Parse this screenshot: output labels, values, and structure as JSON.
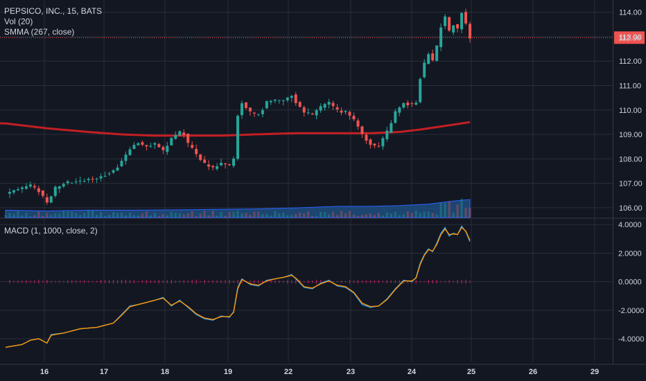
{
  "legend": {
    "title": "PEPSICO, INC., 15, BATS",
    "volume": "Vol (20)",
    "smma": "SMMA (267, close)",
    "macd": "MACD (1, 1000, close, 2)"
  },
  "last_price_label": "112.96",
  "colors": {
    "background": "#131722",
    "grid": "#2a2e39",
    "up": "#26a69a",
    "down": "#ef5350",
    "smma": "#c41f23",
    "volume_ma": "#2962ff",
    "macd_line": "#2196f3",
    "signal_line": "#ff9800",
    "histogram": "#e91e63",
    "price_tag": "#ef5350",
    "axis_text": "#d1d4dc"
  },
  "chart_data": [
    {
      "type": "candlestick",
      "title": "PEPSICO, INC., 15, BATS",
      "x_tick_labels": [
        "16",
        "17",
        "18",
        "19",
        "22",
        "23",
        "24",
        "25",
        "26",
        "29"
      ],
      "y_tick_labels": [
        "114.00",
        "113.00",
        "112.00",
        "111.00",
        "110.00",
        "109.00",
        "108.00",
        "107.00",
        "106.00"
      ],
      "ylim": [
        105.6,
        114.5
      ],
      "grid": true,
      "last_price": 112.96,
      "approx_path": [
        [
          0,
          106.6
        ],
        [
          6,
          106.9
        ],
        [
          8,
          106.7
        ],
        [
          10,
          106.2
        ],
        [
          12,
          106.8
        ],
        [
          14,
          107.0
        ],
        [
          18,
          107.1
        ],
        [
          22,
          107.2
        ],
        [
          26,
          107.5
        ],
        [
          28,
          107.9
        ],
        [
          30,
          108.4
        ],
        [
          32,
          108.7
        ],
        [
          34,
          108.5
        ],
        [
          36,
          108.6
        ],
        [
          38,
          108.3
        ],
        [
          40,
          108.8
        ],
        [
          42,
          109.1
        ],
        [
          43,
          109.0
        ],
        [
          44,
          108.6
        ],
        [
          46,
          108.2
        ],
        [
          48,
          107.8
        ],
        [
          50,
          107.6
        ],
        [
          52,
          107.8
        ],
        [
          54,
          107.7
        ],
        [
          55,
          108.0
        ],
        [
          56,
          109.8
        ],
        [
          57,
          110.3
        ],
        [
          59,
          109.9
        ],
        [
          61,
          109.8
        ],
        [
          63,
          110.3
        ],
        [
          65,
          110.4
        ],
        [
          67,
          110.4
        ],
        [
          69,
          110.6
        ],
        [
          70,
          110.3
        ],
        [
          72,
          109.9
        ],
        [
          74,
          109.8
        ],
        [
          76,
          110.1
        ],
        [
          78,
          110.3
        ],
        [
          80,
          110.0
        ],
        [
          82,
          109.9
        ],
        [
          84,
          109.6
        ],
        [
          86,
          109.0
        ],
        [
          88,
          108.6
        ],
        [
          90,
          108.5
        ],
        [
          92,
          109.1
        ],
        [
          94,
          109.9
        ],
        [
          96,
          110.3
        ],
        [
          98,
          110.2
        ],
        [
          99,
          110.3
        ],
        [
          100,
          111.3
        ],
        [
          101,
          111.9
        ],
        [
          102,
          112.3
        ],
        [
          103,
          112.0
        ],
        [
          104,
          112.6
        ],
        [
          105,
          113.4
        ],
        [
          106,
          113.8
        ],
        [
          107,
          113.2
        ],
        [
          108,
          113.5
        ],
        [
          109,
          113.3
        ],
        [
          110,
          114.0
        ],
        [
          111,
          113.5
        ],
        [
          112,
          112.96
        ]
      ],
      "smma": [
        [
          0,
          109.45
        ],
        [
          10,
          109.25
        ],
        [
          20,
          109.1
        ],
        [
          28,
          109.0
        ],
        [
          36,
          108.95
        ],
        [
          44,
          108.95
        ],
        [
          52,
          108.95
        ],
        [
          60,
          109.0
        ],
        [
          70,
          109.05
        ],
        [
          80,
          109.05
        ],
        [
          88,
          109.05
        ],
        [
          95,
          109.1
        ],
        [
          100,
          109.2
        ],
        [
          106,
          109.35
        ],
        [
          112,
          109.5
        ]
      ],
      "volume_ma": [
        [
          0,
          0.3
        ],
        [
          10,
          0.25
        ],
        [
          20,
          0.3
        ],
        [
          30,
          0.3
        ],
        [
          40,
          0.32
        ],
        [
          50,
          0.35
        ],
        [
          60,
          0.38
        ],
        [
          70,
          0.45
        ],
        [
          80,
          0.55
        ],
        [
          88,
          0.55
        ],
        [
          95,
          0.6
        ],
        [
          102,
          0.7
        ],
        [
          108,
          0.9
        ],
        [
          112,
          1.0
        ]
      ]
    },
    {
      "type": "line",
      "title": "MACD (1, 1000, close, 2)",
      "y_tick_labels": [
        "4.0000",
        "2.0000",
        "0.0000",
        "-2.0000",
        "-4.0000"
      ],
      "ylim": [
        -5.6,
        4.4
      ],
      "series": [
        {
          "values": [
            [
              0,
              -4.6
            ],
            [
              4,
              -4.4
            ],
            [
              6,
              -4.1
            ],
            [
              8,
              -4.0
            ],
            [
              10,
              -4.3
            ],
            [
              11,
              -3.7
            ],
            [
              14,
              -3.6
            ],
            [
              18,
              -3.3
            ],
            [
              22,
              -3.2
            ],
            [
              26,
              -2.9
            ],
            [
              28,
              -2.3
            ],
            [
              30,
              -1.7
            ],
            [
              32,
              -1.6
            ],
            [
              36,
              -1.3
            ],
            [
              38,
              -1.1
            ],
            [
              40,
              -1.7
            ],
            [
              42,
              -1.3
            ],
            [
              44,
              -1.8
            ],
            [
              46,
              -2.3
            ],
            [
              48,
              -2.6
            ],
            [
              50,
              -2.7
            ],
            [
              52,
              -2.4
            ],
            [
              54,
              -2.5
            ],
            [
              55,
              -2.1
            ],
            [
              56,
              -0.4
            ],
            [
              57,
              0.2
            ],
            [
              59,
              -0.2
            ],
            [
              61,
              -0.3
            ],
            [
              63,
              0.1
            ],
            [
              65,
              0.2
            ],
            [
              67,
              0.3
            ],
            [
              69,
              0.5
            ],
            [
              70,
              0.2
            ],
            [
              72,
              -0.4
            ],
            [
              74,
              -0.5
            ],
            [
              76,
              -0.1
            ],
            [
              78,
              0.1
            ],
            [
              80,
              -0.3
            ],
            [
              82,
              -0.4
            ],
            [
              84,
              -0.8
            ],
            [
              86,
              -1.6
            ],
            [
              88,
              -1.8
            ],
            [
              90,
              -1.7
            ],
            [
              92,
              -1.2
            ],
            [
              94,
              -0.5
            ],
            [
              96,
              0.1
            ],
            [
              98,
              0.0
            ],
            [
              99,
              0.3
            ],
            [
              100,
              1.3
            ],
            [
              101,
              1.9
            ],
            [
              102,
              2.3
            ],
            [
              103,
              2.1
            ],
            [
              104,
              2.7
            ],
            [
              105,
              3.4
            ],
            [
              106,
              3.8
            ],
            [
              107,
              3.2
            ],
            [
              108,
              3.4
            ],
            [
              109,
              3.3
            ],
            [
              110,
              3.9
            ],
            [
              111,
              3.5
            ],
            [
              112,
              2.8
            ]
          ]
        },
        {
          "values": [
            [
              0,
              -4.6
            ],
            [
              4,
              -4.4
            ],
            [
              6,
              -4.1
            ],
            [
              8,
              -4.0
            ],
            [
              10,
              -4.3
            ],
            [
              11,
              -3.75
            ],
            [
              14,
              -3.6
            ],
            [
              18,
              -3.3
            ],
            [
              22,
              -3.2
            ],
            [
              26,
              -2.9
            ],
            [
              28,
              -2.35
            ],
            [
              30,
              -1.75
            ],
            [
              32,
              -1.6
            ],
            [
              36,
              -1.3
            ],
            [
              38,
              -1.15
            ],
            [
              40,
              -1.65
            ],
            [
              42,
              -1.35
            ],
            [
              44,
              -1.75
            ],
            [
              46,
              -2.25
            ],
            [
              48,
              -2.55
            ],
            [
              50,
              -2.65
            ],
            [
              52,
              -2.45
            ],
            [
              54,
              -2.45
            ],
            [
              55,
              -2.15
            ],
            [
              56,
              -0.5
            ],
            [
              57,
              0.15
            ],
            [
              59,
              -0.15
            ],
            [
              61,
              -0.25
            ],
            [
              63,
              0.05
            ],
            [
              65,
              0.2
            ],
            [
              67,
              0.3
            ],
            [
              69,
              0.45
            ],
            [
              70,
              0.25
            ],
            [
              72,
              -0.35
            ],
            [
              74,
              -0.45
            ],
            [
              76,
              -0.15
            ],
            [
              78,
              0.05
            ],
            [
              80,
              -0.25
            ],
            [
              82,
              -0.35
            ],
            [
              84,
              -0.75
            ],
            [
              86,
              -1.5
            ],
            [
              88,
              -1.75
            ],
            [
              90,
              -1.7
            ],
            [
              92,
              -1.25
            ],
            [
              94,
              -0.55
            ],
            [
              96,
              0.05
            ],
            [
              98,
              0.05
            ],
            [
              99,
              0.25
            ],
            [
              100,
              1.2
            ],
            [
              101,
              1.85
            ],
            [
              102,
              2.25
            ],
            [
              103,
              2.15
            ],
            [
              104,
              2.6
            ],
            [
              105,
              3.3
            ],
            [
              106,
              3.7
            ],
            [
              107,
              3.3
            ],
            [
              108,
              3.35
            ],
            [
              109,
              3.3
            ],
            [
              110,
              3.8
            ],
            [
              111,
              3.55
            ],
            [
              112,
              2.9
            ]
          ]
        }
      ]
    }
  ]
}
